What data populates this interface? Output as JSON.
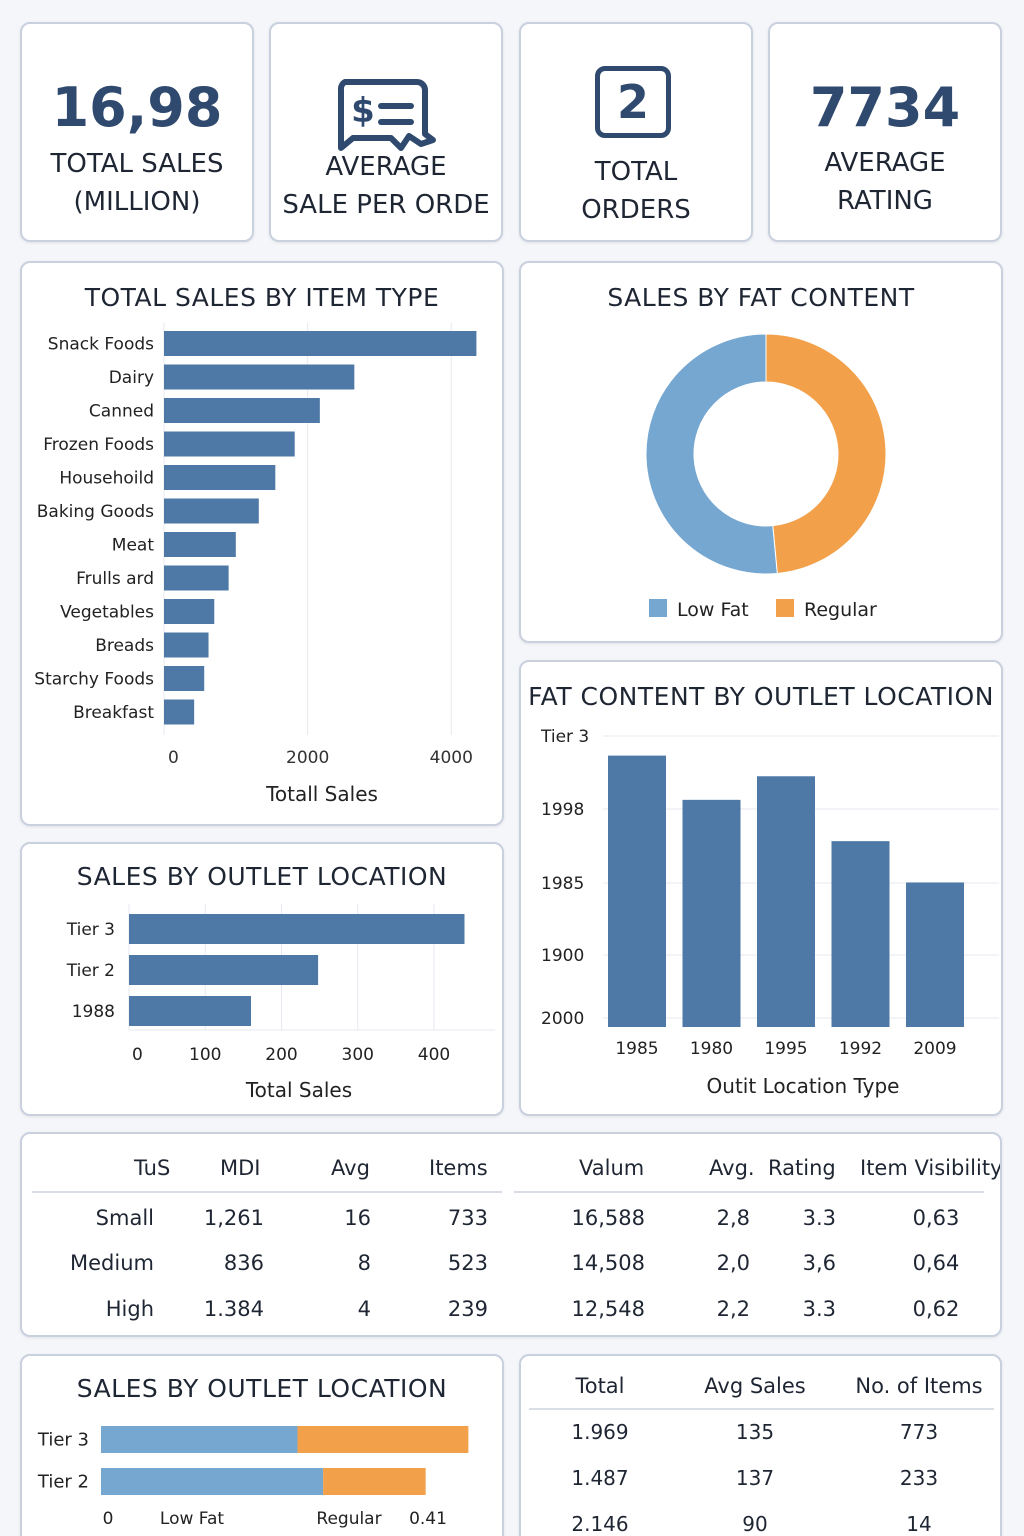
{
  "kpis": [
    {
      "value": "16,98",
      "label": "TOTAL SALES\n(MILLION)"
    },
    {
      "icon": "receipt-dollar-icon",
      "label": "AVERAGE\nSALE PER ORDE"
    },
    {
      "badge": "2",
      "label": "TOTAL\nORDERS"
    },
    {
      "value": "7734",
      "label": "AVERAGE\nRATING"
    }
  ],
  "colors": {
    "bar": "#4e79a7",
    "low_fat": "#76a7d1",
    "regular": "#f2a049",
    "grid": "#e6e9ef"
  },
  "chart_data": [
    {
      "type": "bar",
      "orientation": "horizontal",
      "title": "TOTAL SALES BY ITEM TYPE",
      "categories": [
        "Snack Foods",
        "Dairy",
        "Canned",
        "Frozen Foods",
        "Househoild",
        "Baking Goods",
        "Meat",
        "Frulls ard",
        "Vegetables",
        "Breads",
        "Starchy Foods",
        "Breakfast"
      ],
      "values": [
        4350,
        2650,
        2170,
        1820,
        1550,
        1320,
        1000,
        900,
        700,
        620,
        560,
        420
      ],
      "xlabel": "Totall Sales",
      "xticks": [
        "0",
        "2000",
        "4000"
      ],
      "xlim": [
        0,
        4400
      ],
      "grid": true
    },
    {
      "type": "pie",
      "donut": true,
      "title": "SALES BY FAT CONTENT",
      "labels": [
        "Low Fat",
        "Regular"
      ],
      "values": [
        51.5,
        48.5
      ],
      "legend": "bottom"
    },
    {
      "type": "bar",
      "orientation": "vertical",
      "title": "FAT CONTENT BY OUTLET LOCATION",
      "categories": [
        "1985",
        "1980",
        "1995",
        "1992",
        "2009"
      ],
      "values": [
        92,
        77,
        85,
        63,
        49
      ],
      "ytick_labels": [
        "Tier 3",
        "1998",
        "1985",
        "1900",
        "2000"
      ],
      "xlabel": "Outit Location Type",
      "ylim": [
        0,
        100
      ],
      "grid": true
    },
    {
      "type": "bar",
      "orientation": "horizontal",
      "title": "SALES BY OUTLET LOCATION",
      "categories": [
        "Tier 3",
        "Tier 2",
        "1988"
      ],
      "values": [
        440,
        248,
        160
      ],
      "xticks": [
        "0",
        "100",
        "200",
        "300",
        "400"
      ],
      "xlim": [
        0,
        480
      ],
      "xlabel": "Total Sales",
      "grid": true
    },
    {
      "type": "bar",
      "orientation": "horizontal",
      "stacked": true,
      "title": "SALES BY OUTLET LOCATION",
      "categories": [
        "Tier 3",
        "Tier 2"
      ],
      "series": [
        {
          "name": "Low Fat",
          "values": [
            0.23,
            0.26
          ]
        },
        {
          "name": "Regular",
          "values": [
            0.2,
            0.12
          ]
        }
      ],
      "xtick_labels": [
        "0",
        "Low Fat",
        "Regular",
        "0.41"
      ],
      "xlim": [
        0,
        0.46
      ]
    },
    {
      "type": "table",
      "columns": [
        "TuS",
        "MDI",
        "Avg",
        "Items",
        "Valum",
        "Avg.",
        "Rating",
        "Item Visibility"
      ],
      "rows": [
        [
          "Small",
          "1,261",
          "16",
          "733",
          "16,588",
          "2,8",
          "3.3",
          "0,63"
        ],
        [
          "Medium",
          "836",
          "8",
          "523",
          "14,508",
          "2,0",
          "3,6",
          "0,64"
        ],
        [
          "High",
          "1.384",
          "4",
          "239",
          "12,548",
          "2,2",
          "3.3",
          "0,62"
        ]
      ]
    },
    {
      "type": "table",
      "columns": [
        "Total",
        "Avg Sales",
        "No. of Items"
      ],
      "rows": [
        [
          "1.969",
          "135",
          "773"
        ],
        [
          "1.487",
          "137",
          "233"
        ],
        [
          "2.146",
          "90",
          "14"
        ]
      ]
    }
  ]
}
